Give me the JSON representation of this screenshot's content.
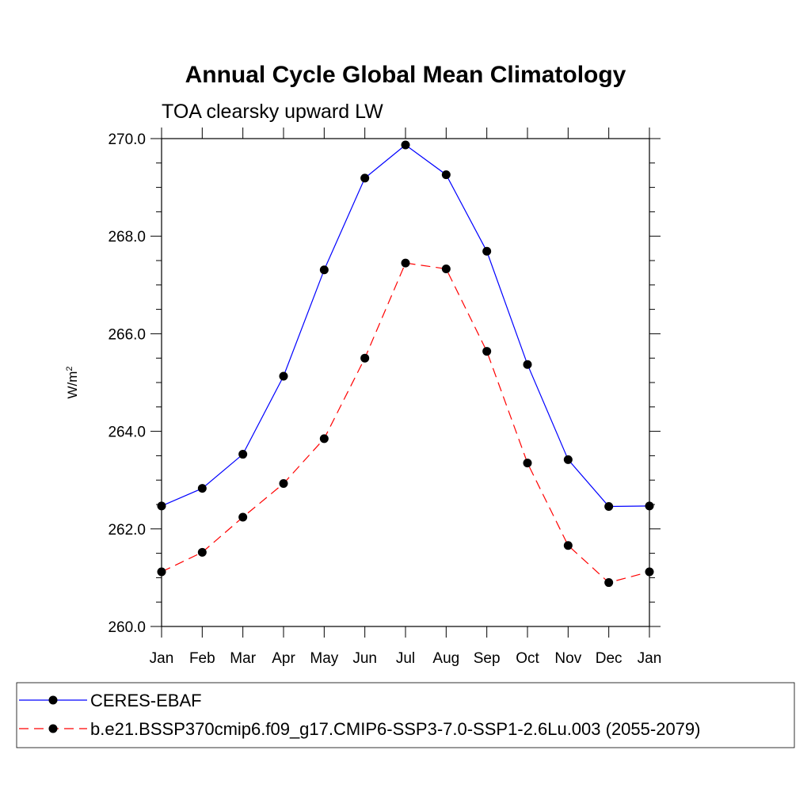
{
  "chart_data": {
    "type": "line",
    "title": "Annual Cycle Global Mean Climatology",
    "subtitle": "TOA clearsky upward LW",
    "ylabel": "W/m",
    "ylabel_sup": "2",
    "ylim": [
      260.0,
      270.0
    ],
    "yticks": [
      "260.0",
      "262.0",
      "264.0",
      "266.0",
      "268.0",
      "270.0"
    ],
    "categories": [
      "Jan",
      "Feb",
      "Mar",
      "Apr",
      "May",
      "Jun",
      "Jul",
      "Aug",
      "Sep",
      "Oct",
      "Nov",
      "Dec",
      "Jan"
    ],
    "grid": false,
    "legend_position": "bottom",
    "series": [
      {
        "name": "CERES-EBAF",
        "color": "#0000ff",
        "dash": "solid",
        "marker": "filled-circle",
        "values": [
          262.47,
          262.83,
          263.53,
          265.13,
          267.31,
          269.19,
          269.87,
          269.26,
          267.69,
          265.37,
          263.42,
          262.46,
          262.47
        ]
      },
      {
        "name": "b.e21.BSSP370cmip6.f09_g17.CMIP6-SSP3-7.0-SSP1-2.6Lu.003 (2055-2079)",
        "color": "#ff0000",
        "dash": "dashed",
        "marker": "filled-circle",
        "values": [
          261.12,
          261.52,
          262.24,
          262.93,
          263.85,
          265.5,
          267.45,
          267.33,
          265.64,
          263.35,
          261.66,
          260.9,
          261.12
        ]
      }
    ]
  }
}
